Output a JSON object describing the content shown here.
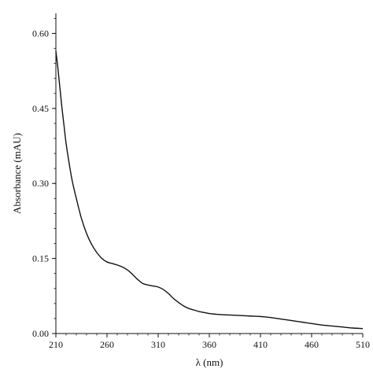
{
  "chart_data": {
    "type": "line",
    "title": "",
    "xlabel": "λ (nm)",
    "ylabel": "Absorbance (mAU)",
    "xlim": [
      210,
      510
    ],
    "ylim": [
      0,
      0.64
    ],
    "xticks": [
      210,
      260,
      310,
      360,
      410,
      460,
      510
    ],
    "xtick_labels": [
      "210",
      "260",
      "310",
      "360",
      "410",
      "460",
      "510"
    ],
    "yticks": [
      0,
      0.15,
      0.3,
      0.45,
      0.6
    ],
    "ytick_labels": [
      "0.00",
      "0.15",
      "0.30",
      "0.45",
      "0.60"
    ],
    "grid": false,
    "line_color": "#111111",
    "series": [
      {
        "x": [
          210,
          212,
          214,
          216,
          218,
          220,
          223,
          226,
          230,
          235,
          240,
          245,
          250,
          255,
          260,
          265,
          270,
          275,
          280,
          285,
          290,
          295,
          300,
          305,
          310,
          315,
          320,
          325,
          330,
          335,
          340,
          345,
          350,
          355,
          360,
          370,
          380,
          390,
          400,
          410,
          420,
          430,
          440,
          450,
          460,
          470,
          480,
          490,
          500,
          510
        ],
        "y": [
          0.565,
          0.53,
          0.49,
          0.45,
          0.415,
          0.38,
          0.34,
          0.305,
          0.27,
          0.23,
          0.2,
          0.178,
          0.162,
          0.15,
          0.143,
          0.14,
          0.137,
          0.133,
          0.127,
          0.118,
          0.108,
          0.1,
          0.097,
          0.095,
          0.093,
          0.088,
          0.08,
          0.07,
          0.062,
          0.055,
          0.05,
          0.047,
          0.044,
          0.042,
          0.04,
          0.038,
          0.037,
          0.036,
          0.035,
          0.034,
          0.032,
          0.029,
          0.026,
          0.023,
          0.02,
          0.017,
          0.015,
          0.013,
          0.011,
          0.01
        ]
      }
    ]
  }
}
